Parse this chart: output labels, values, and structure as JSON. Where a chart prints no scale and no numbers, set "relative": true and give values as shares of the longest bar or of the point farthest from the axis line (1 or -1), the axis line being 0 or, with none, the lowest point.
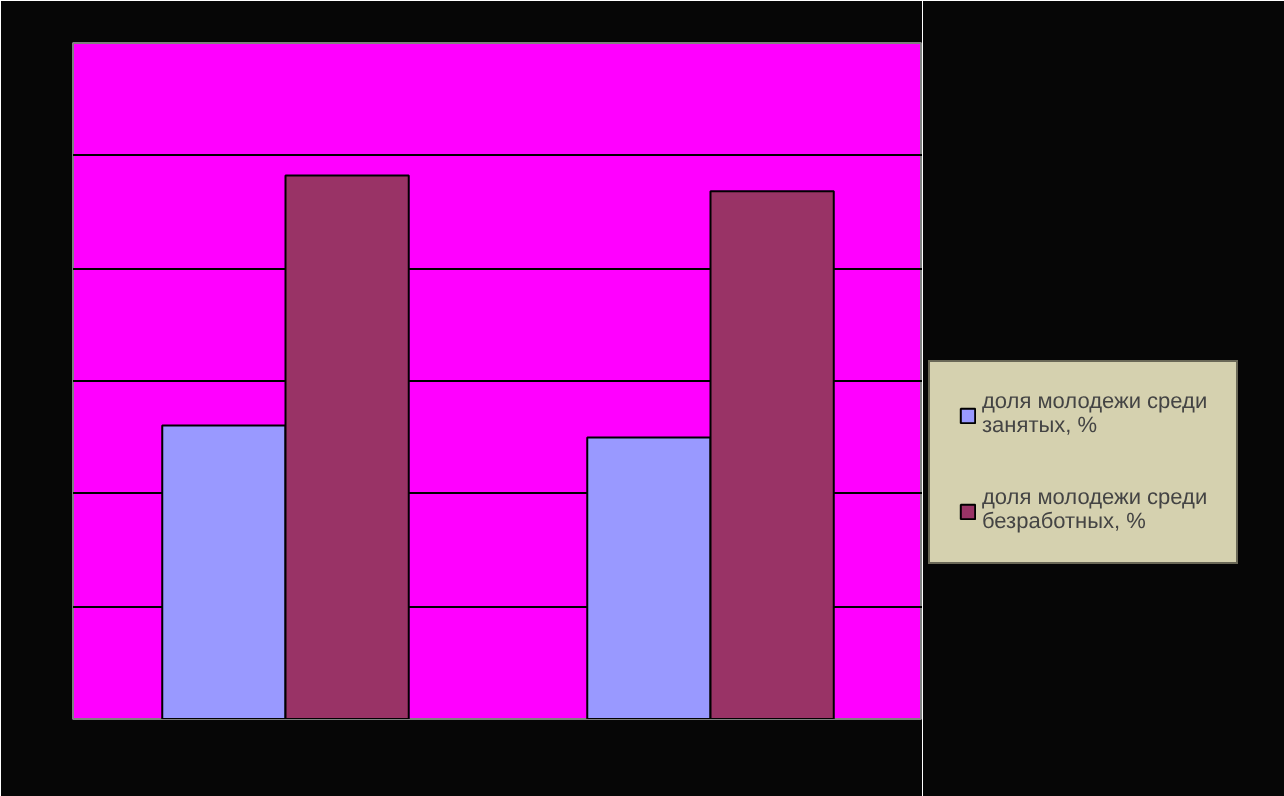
{
  "chart_data": {
    "type": "bar",
    "relative": true,
    "categories": [
      null,
      null
    ],
    "series": [
      {
        "name": "доля молодежи среди занятых, %",
        "color": "#9999ff",
        "values": [
          0.54,
          0.518
        ]
      },
      {
        "name": "доля молодежи среди безработных, %",
        "color": "#993366",
        "values": [
          1,
          0.971
        ]
      }
    ],
    "grid": "y",
    "legend": "right"
  }
}
